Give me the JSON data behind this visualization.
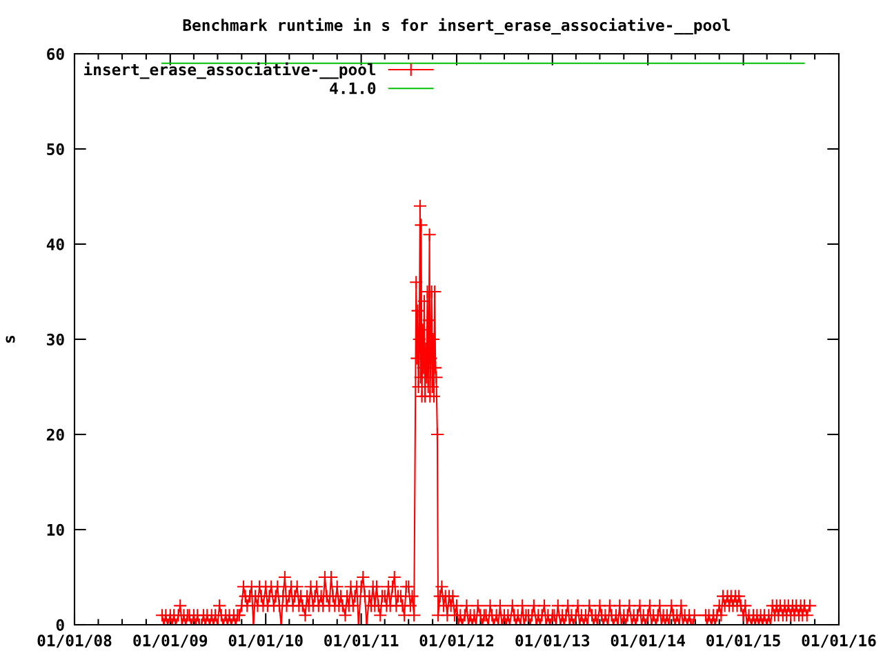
{
  "chart_data": {
    "type": "line",
    "title": "Benchmark runtime in s for insert_erase_associative-__pool",
    "ylabel": "s",
    "xlim": [
      "2008-01-01",
      "2016-01-01"
    ],
    "xticks": [
      {
        "value": "2008-01-01",
        "label": "01/01/08"
      },
      {
        "value": "2008-04-01",
        "label": null
      },
      {
        "value": "2008-07-01",
        "label": null
      },
      {
        "value": "2008-10-01",
        "label": null
      },
      {
        "value": "2009-01-01",
        "label": "01/01/09"
      },
      {
        "value": "2009-04-01",
        "label": null
      },
      {
        "value": "2009-07-01",
        "label": null
      },
      {
        "value": "2009-10-01",
        "label": null
      },
      {
        "value": "2010-01-01",
        "label": "01/01/10"
      },
      {
        "value": "2010-04-01",
        "label": null
      },
      {
        "value": "2010-07-01",
        "label": null
      },
      {
        "value": "2010-10-01",
        "label": null
      },
      {
        "value": "2011-01-01",
        "label": "01/01/11"
      },
      {
        "value": "2011-04-01",
        "label": null
      },
      {
        "value": "2011-07-01",
        "label": null
      },
      {
        "value": "2011-10-01",
        "label": null
      },
      {
        "value": "2012-01-01",
        "label": "01/01/12"
      },
      {
        "value": "2012-04-01",
        "label": null
      },
      {
        "value": "2012-07-01",
        "label": null
      },
      {
        "value": "2012-10-01",
        "label": null
      },
      {
        "value": "2013-01-01",
        "label": "01/01/13"
      },
      {
        "value": "2013-04-01",
        "label": null
      },
      {
        "value": "2013-07-01",
        "label": null
      },
      {
        "value": "2013-10-01",
        "label": null
      },
      {
        "value": "2014-01-01",
        "label": "01/01/14"
      },
      {
        "value": "2014-04-01",
        "label": null
      },
      {
        "value": "2014-07-01",
        "label": null
      },
      {
        "value": "2014-10-01",
        "label": null
      },
      {
        "value": "2015-01-01",
        "label": "01/01/15"
      },
      {
        "value": "2015-04-01",
        "label": null
      },
      {
        "value": "2015-07-01",
        "label": null
      },
      {
        "value": "2015-10-01",
        "label": null
      },
      {
        "value": "2016-01-01",
        "label": "01/01/16"
      }
    ],
    "ylim": [
      0,
      60
    ],
    "yticks": [
      0,
      10,
      20,
      30,
      40,
      50,
      60
    ],
    "legend": "top left",
    "series": [
      {
        "name": "insert_erase_associative-__pool",
        "color": "#ff0000",
        "marker": "cross",
        "x": [
          "2008-12-01",
          "2008-12-08",
          "2008-12-15",
          "2008-12-22",
          "2009-01-01",
          "2009-01-08",
          "2009-01-15",
          "2009-01-22",
          "2009-02-01",
          "2009-02-08",
          "2009-02-15",
          "2009-02-22",
          "2009-03-01",
          "2009-03-08",
          "2009-03-15",
          "2009-03-22",
          "2009-04-01",
          "2009-04-08",
          "2009-04-15",
          "2009-04-22",
          "2009-05-01",
          "2009-05-08",
          "2009-05-15",
          "2009-05-22",
          "2009-06-01",
          "2009-06-08",
          "2009-06-15",
          "2009-06-22",
          "2009-07-01",
          "2009-07-08",
          "2009-07-15",
          "2009-07-22",
          "2009-08-01",
          "2009-08-08",
          "2009-08-15",
          "2009-08-22",
          "2009-09-01",
          "2009-09-08",
          "2009-09-15",
          "2009-09-22",
          "2009-10-01",
          "2009-10-08",
          "2009-10-15",
          "2009-10-22",
          "2009-11-01",
          "2009-11-08",
          "2009-11-15",
          "2009-11-22",
          "2009-12-01",
          "2009-12-08",
          "2009-12-15",
          "2009-12-22",
          "2010-01-01",
          "2010-01-08",
          "2010-01-15",
          "2010-01-22",
          "2010-02-01",
          "2010-02-08",
          "2010-02-15",
          "2010-02-22",
          "2010-03-01",
          "2010-03-08",
          "2010-03-15",
          "2010-03-22",
          "2010-04-01",
          "2010-04-08",
          "2010-04-15",
          "2010-04-22",
          "2010-05-01",
          "2010-05-08",
          "2010-05-15",
          "2010-05-22",
          "2010-06-01",
          "2010-06-08",
          "2010-06-15",
          "2010-06-22",
          "2010-07-01",
          "2010-07-08",
          "2010-07-15",
          "2010-07-22",
          "2010-08-01",
          "2010-08-08",
          "2010-08-15",
          "2010-08-22",
          "2010-09-01",
          "2010-09-08",
          "2010-09-15",
          "2010-09-22",
          "2010-10-01",
          "2010-10-08",
          "2010-10-15",
          "2010-10-22",
          "2010-11-01",
          "2010-11-08",
          "2010-11-15",
          "2010-11-22",
          "2010-12-01",
          "2010-12-08",
          "2010-12-15",
          "2010-12-22",
          "2011-01-01",
          "2011-01-08",
          "2011-01-15",
          "2011-01-22",
          "2011-02-01",
          "2011-02-08",
          "2011-02-15",
          "2011-02-22",
          "2011-03-01",
          "2011-03-08",
          "2011-03-15",
          "2011-03-22",
          "2011-04-01",
          "2011-04-08",
          "2011-04-15",
          "2011-04-22",
          "2011-05-01",
          "2011-05-08",
          "2011-05-15",
          "2011-05-22",
          "2011-06-01",
          "2011-06-08",
          "2011-06-15",
          "2011-06-22",
          "2011-07-01",
          "2011-07-08",
          "2011-07-15",
          "2011-07-22",
          "2011-07-30",
          "2011-08-02",
          "2011-08-05",
          "2011-08-08",
          "2011-08-11",
          "2011-08-14",
          "2011-08-16",
          "2011-08-18",
          "2011-08-21",
          "2011-08-24",
          "2011-08-27",
          "2011-08-30",
          "2011-09-02",
          "2011-09-05",
          "2011-09-08",
          "2011-09-11",
          "2011-09-14",
          "2011-09-17",
          "2011-09-19",
          "2011-09-21",
          "2011-09-24",
          "2011-09-27",
          "2011-09-30",
          "2011-10-03",
          "2011-10-06",
          "2011-10-09",
          "2011-10-12",
          "2011-10-15",
          "2011-10-19",
          "2011-10-22",
          "2011-10-29",
          "2011-11-05",
          "2011-11-12",
          "2011-11-19",
          "2011-11-26",
          "2011-12-03",
          "2011-12-10",
          "2011-12-17",
          "2011-12-24",
          "2012-01-01",
          "2012-01-08",
          "2012-01-15",
          "2012-01-22",
          "2012-02-01",
          "2012-02-08",
          "2012-02-15",
          "2012-02-22",
          "2012-03-01",
          "2012-03-08",
          "2012-03-15",
          "2012-03-22",
          "2012-04-01",
          "2012-04-08",
          "2012-04-15",
          "2012-04-22",
          "2012-05-01",
          "2012-05-08",
          "2012-05-15",
          "2012-05-22",
          "2012-06-01",
          "2012-06-08",
          "2012-06-15",
          "2012-06-22",
          "2012-07-01",
          "2012-07-08",
          "2012-07-15",
          "2012-07-22",
          "2012-08-01",
          "2012-08-08",
          "2012-08-15",
          "2012-08-22",
          "2012-09-01",
          "2012-09-08",
          "2012-09-15",
          "2012-09-22",
          "2012-10-01",
          "2012-10-08",
          "2012-10-15",
          "2012-10-22",
          "2012-11-01",
          "2012-11-08",
          "2012-11-15",
          "2012-11-22",
          "2012-12-01",
          "2012-12-08",
          "2012-12-15",
          "2012-12-22",
          "2013-01-01",
          "2013-01-08",
          "2013-01-15",
          "2013-01-22",
          "2013-02-01",
          "2013-02-08",
          "2013-02-15",
          "2013-02-22",
          "2013-03-01",
          "2013-03-08",
          "2013-03-15",
          "2013-03-22",
          "2013-04-01",
          "2013-04-08",
          "2013-04-15",
          "2013-04-22",
          "2013-05-01",
          "2013-05-08",
          "2013-05-15",
          "2013-05-22",
          "2013-06-01",
          "2013-06-08",
          "2013-06-15",
          "2013-06-22",
          "2013-07-01",
          "2013-07-08",
          "2013-07-15",
          "2013-07-22",
          "2013-08-01",
          "2013-08-08",
          "2013-08-15",
          "2013-08-22",
          "2013-09-01",
          "2013-09-08",
          "2013-09-15",
          "2013-09-22",
          "2013-10-01",
          "2013-10-08",
          "2013-10-15",
          "2013-10-22",
          "2013-11-01",
          "2013-11-08",
          "2013-11-15",
          "2013-11-22",
          "2013-12-01",
          "2013-12-08",
          "2013-12-15",
          "2013-12-22",
          "2014-01-01",
          "2014-01-08",
          "2014-01-15",
          "2014-01-22",
          "2014-02-01",
          "2014-02-08",
          "2014-02-15",
          "2014-02-22",
          "2014-03-01",
          "2014-03-08",
          "2014-03-15",
          "2014-03-22",
          "2014-04-01",
          "2014-04-08",
          "2014-04-15",
          "2014-04-22",
          "2014-05-01",
          "2014-05-08",
          "2014-05-15",
          "2014-05-22",
          "2014-06-01",
          "2014-06-08",
          "2014-06-15",
          "2014-06-22",
          "2014-06-28",
          "2014-08-10",
          "2014-08-15",
          "2014-08-22",
          "2014-09-01",
          "2014-09-08",
          "2014-09-15",
          "2014-09-22",
          "2014-10-01",
          "2014-10-08",
          "2014-10-15",
          "2014-10-22",
          "2014-11-01",
          "2014-11-08",
          "2014-11-15",
          "2014-11-22",
          "2014-12-01",
          "2014-12-08",
          "2014-12-15",
          "2014-12-22",
          "2015-01-01",
          "2015-01-08",
          "2015-01-15",
          "2015-01-22",
          "2015-02-01",
          "2015-02-08",
          "2015-02-15",
          "2015-02-22",
          "2015-03-01",
          "2015-03-08",
          "2015-03-15",
          "2015-03-22",
          "2015-04-01",
          "2015-04-08",
          "2015-04-15",
          "2015-04-22",
          "2015-05-01",
          "2015-05-08",
          "2015-05-15",
          "2015-05-22",
          "2015-06-01",
          "2015-06-08",
          "2015-06-15",
          "2015-06-22",
          "2015-07-01",
          "2015-07-08",
          "2015-07-15",
          "2015-07-22",
          "2015-08-01",
          "2015-08-08",
          "2015-08-15",
          "2015-08-22",
          "2015-09-01",
          "2015-09-12"
        ],
        "values": [
          1,
          0,
          1,
          0,
          1,
          0,
          1,
          0,
          1,
          2,
          0,
          1,
          0,
          1,
          1,
          0,
          1,
          0,
          1,
          0,
          0,
          1,
          0,
          1,
          0,
          1,
          0,
          1,
          0,
          2,
          1,
          0,
          1,
          0,
          1,
          0,
          1,
          0,
          1,
          1,
          2,
          4,
          3,
          2,
          3,
          4,
          0,
          3,
          2,
          4,
          3,
          2,
          4,
          2,
          3,
          4,
          2,
          3,
          4,
          2,
          0,
          3,
          5,
          2,
          3,
          4,
          2,
          3,
          4,
          2,
          3,
          2,
          1,
          3,
          2,
          4,
          2,
          3,
          4,
          2,
          3,
          2,
          5,
          3,
          2,
          5,
          3,
          2,
          4,
          2,
          3,
          2,
          1,
          3,
          2,
          4,
          2,
          3,
          4,
          0,
          4,
          5,
          3,
          0,
          3,
          2,
          4,
          2,
          4,
          2,
          1,
          3,
          3,
          2,
          4,
          2,
          4,
          5,
          2,
          3,
          3,
          2,
          1,
          4,
          4,
          2,
          3,
          1,
          36,
          28,
          33,
          25,
          30,
          44,
          26,
          42,
          24,
          31,
          27,
          34,
          24,
          29,
          26,
          35,
          25,
          32,
          41,
          24,
          28,
          35,
          25,
          30,
          24,
          35,
          27,
          26,
          20,
          1,
          3,
          4,
          2,
          3,
          1,
          3,
          2,
          3,
          1,
          2,
          0,
          1,
          0,
          1,
          2,
          0,
          1,
          0,
          1,
          0,
          2,
          1,
          0,
          1,
          1,
          0,
          2,
          1,
          0,
          1,
          0,
          2,
          0,
          1,
          0,
          1,
          0,
          2,
          1,
          0,
          1,
          0,
          2,
          0,
          1,
          1,
          0,
          1,
          2,
          0,
          1,
          0,
          1,
          2,
          0,
          1,
          0,
          1,
          1,
          0,
          2,
          0,
          1,
          0,
          1,
          2,
          0,
          1,
          0,
          1,
          2,
          0,
          1,
          0,
          1,
          0,
          2,
          1,
          0,
          1,
          0,
          2,
          1,
          0,
          1,
          0,
          2,
          1,
          0,
          1,
          0,
          2,
          0,
          1,
          0,
          1,
          2,
          0,
          1,
          0,
          1,
          2,
          0,
          1,
          0,
          1,
          2,
          0,
          1,
          0,
          1,
          2,
          0,
          1,
          0,
          1,
          0,
          2,
          1,
          0,
          1,
          0,
          2,
          0,
          1,
          0,
          1,
          0,
          0,
          1,
          1,
          0,
          1,
          0,
          1,
          0,
          1,
          2,
          1,
          3,
          2,
          3,
          2,
          3,
          2,
          3,
          2,
          3,
          2,
          1,
          2,
          0,
          1,
          0,
          1,
          0,
          1,
          0,
          1,
          0,
          1,
          0,
          1,
          0,
          2,
          1,
          2,
          1,
          2,
          1,
          2,
          1,
          2,
          1,
          2,
          1,
          2,
          1,
          2,
          1,
          2,
          1,
          2
        ]
      },
      {
        "name": "4.1.0",
        "color": "#00c000",
        "x": [
          "2008-12-01",
          "2015-08-21"
        ],
        "values": [
          59,
          59
        ]
      }
    ]
  }
}
